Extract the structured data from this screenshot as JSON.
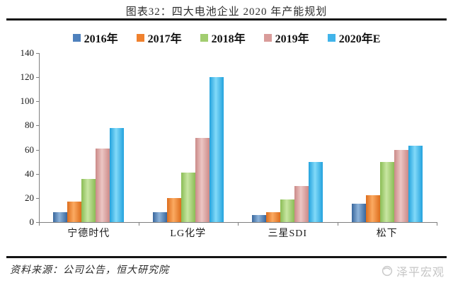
{
  "title": "图表32：四大电池企业 2020 年产能规划",
  "footer": {
    "source": "资料来源：公司公告，恒大研究院",
    "watermark": "泽平宏观"
  },
  "chart_data": {
    "type": "bar",
    "title": "图表32：四大电池企业 2020 年产能规划",
    "categories": [
      "宁德时代",
      "LG化学",
      "三星SDI",
      "松下"
    ],
    "series": [
      {
        "name": "2016年",
        "color": "#4f81bd",
        "edge": "#39679d",
        "mid": "#8db3da",
        "values": [
          8,
          8,
          6,
          15
        ]
      },
      {
        "name": "2017年",
        "color": "#f0812e",
        "edge": "#dd6d1c",
        "mid": "#fbaa62",
        "values": [
          17,
          20,
          8,
          22
        ]
      },
      {
        "name": "2018年",
        "color": "#a2cd70",
        "edge": "#8abc55",
        "mid": "#c8e6a2",
        "values": [
          36,
          41,
          19,
          50
        ]
      },
      {
        "name": "2019年",
        "color": "#d99c9a",
        "edge": "#cb8a88",
        "mid": "#ecc6c4",
        "values": [
          61,
          70,
          30,
          60
        ]
      },
      {
        "name": "2020年E",
        "color": "#41b4ea",
        "edge": "#23a2dd",
        "mid": "#82daf9",
        "values": [
          78,
          120,
          50,
          63
        ]
      }
    ],
    "xlabel": "",
    "ylabel": "",
    "ylim": [
      0,
      140
    ],
    "ytick_step": 20,
    "grid": false,
    "legend_position": "top"
  }
}
